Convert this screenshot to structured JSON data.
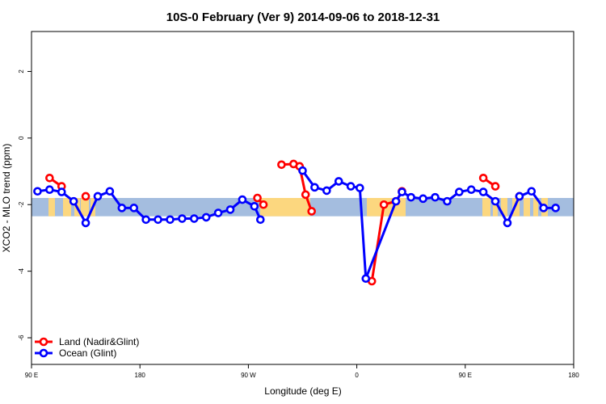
{
  "chart_data": {
    "type": "line",
    "title": "10S-0 February (Ver 9)   2014-09-06 to 2018-12-31",
    "xlabel": "Longitude (deg E)",
    "ylabel": "XCO2 - MLO trend (ppm)",
    "xlim": [
      90,
      540
    ],
    "ylim": [
      -6.8,
      3.2
    ],
    "x_ticks": [
      {
        "value": 90,
        "label": "90 E"
      },
      {
        "value": 180,
        "label": "180"
      },
      {
        "value": 270,
        "label": "90 W"
      },
      {
        "value": 360,
        "label": "0"
      },
      {
        "value": 450,
        "label": "90 E"
      },
      {
        "value": 540,
        "label": "180"
      }
    ],
    "y_ticks": [
      {
        "value": 2,
        "label": "2"
      },
      {
        "value": 0,
        "label": "0"
      },
      {
        "value": -2,
        "label": "-2"
      },
      {
        "value": -4,
        "label": "-4"
      },
      {
        "value": -6,
        "label": "-6"
      }
    ],
    "background_band": {
      "y_range": [
        -2.35,
        -1.8
      ],
      "ocean_color": "#a4bddf",
      "land_color": "#fcd77f"
    },
    "legend_position": "bottom-left",
    "series": [
      {
        "name": "Land (Nadir&Glint)",
        "color": "#ff0000",
        "segments": [
          [
            [
              105,
              -1.2
            ],
            [
              115,
              -1.45
            ]
          ],
          [
            [
              135,
              -1.75
            ]
          ],
          [
            [
              277.5,
              -1.8
            ],
            [
              282.5,
              -2.0
            ]
          ],
          [
            [
              297.5,
              -0.8
            ],
            [
              307.5,
              -0.78
            ],
            [
              312.5,
              -0.85
            ],
            [
              317.5,
              -1.7
            ],
            [
              322.5,
              -2.2
            ]
          ],
          [
            [
              372.5,
              -4.3
            ],
            [
              382.5,
              -2.0
            ],
            [
              392.5,
              -1.9
            ],
            [
              397.5,
              -1.6
            ]
          ],
          [
            [
              465,
              -1.2
            ],
            [
              475,
              -1.45
            ]
          ],
          [
            [
              495,
              -1.75
            ]
          ]
        ]
      },
      {
        "name": "Ocean (Glint)",
        "color": "#0000ff",
        "segments": [
          [
            [
              95,
              -1.6
            ],
            [
              105,
              -1.55
            ],
            [
              115,
              -1.62
            ],
            [
              125,
              -1.9
            ],
            [
              135,
              -2.55
            ],
            [
              145,
              -1.75
            ],
            [
              155,
              -1.6
            ],
            [
              165,
              -2.1
            ],
            [
              175,
              -2.1
            ],
            [
              185,
              -2.45
            ],
            [
              195,
              -2.45
            ],
            [
              205,
              -2.45
            ],
            [
              215,
              -2.42
            ],
            [
              225,
              -2.42
            ],
            [
              235,
              -2.38
            ],
            [
              245,
              -2.25
            ],
            [
              255,
              -2.15
            ],
            [
              265,
              -1.85
            ],
            [
              275,
              -2.05
            ],
            [
              280,
              -2.45
            ]
          ],
          [
            [
              315,
              -0.98
            ],
            [
              325,
              -1.48
            ],
            [
              335,
              -1.58
            ],
            [
              345,
              -1.3
            ],
            [
              355,
              -1.45
            ],
            [
              362.5,
              -1.5
            ],
            [
              367.5,
              -4.22
            ],
            [
              392.5,
              -1.9
            ],
            [
              397.5,
              -1.62
            ],
            [
              405,
              -1.78
            ],
            [
              415,
              -1.82
            ],
            [
              425,
              -1.78
            ],
            [
              435,
              -1.9
            ],
            [
              445,
              -1.62
            ],
            [
              455,
              -1.55
            ],
            [
              465,
              -1.62
            ],
            [
              475,
              -1.9
            ],
            [
              485,
              -2.55
            ],
            [
              495,
              -1.75
            ],
            [
              505,
              -1.6
            ],
            [
              515,
              -2.1
            ],
            [
              525,
              -2.1
            ]
          ]
        ]
      }
    ]
  }
}
